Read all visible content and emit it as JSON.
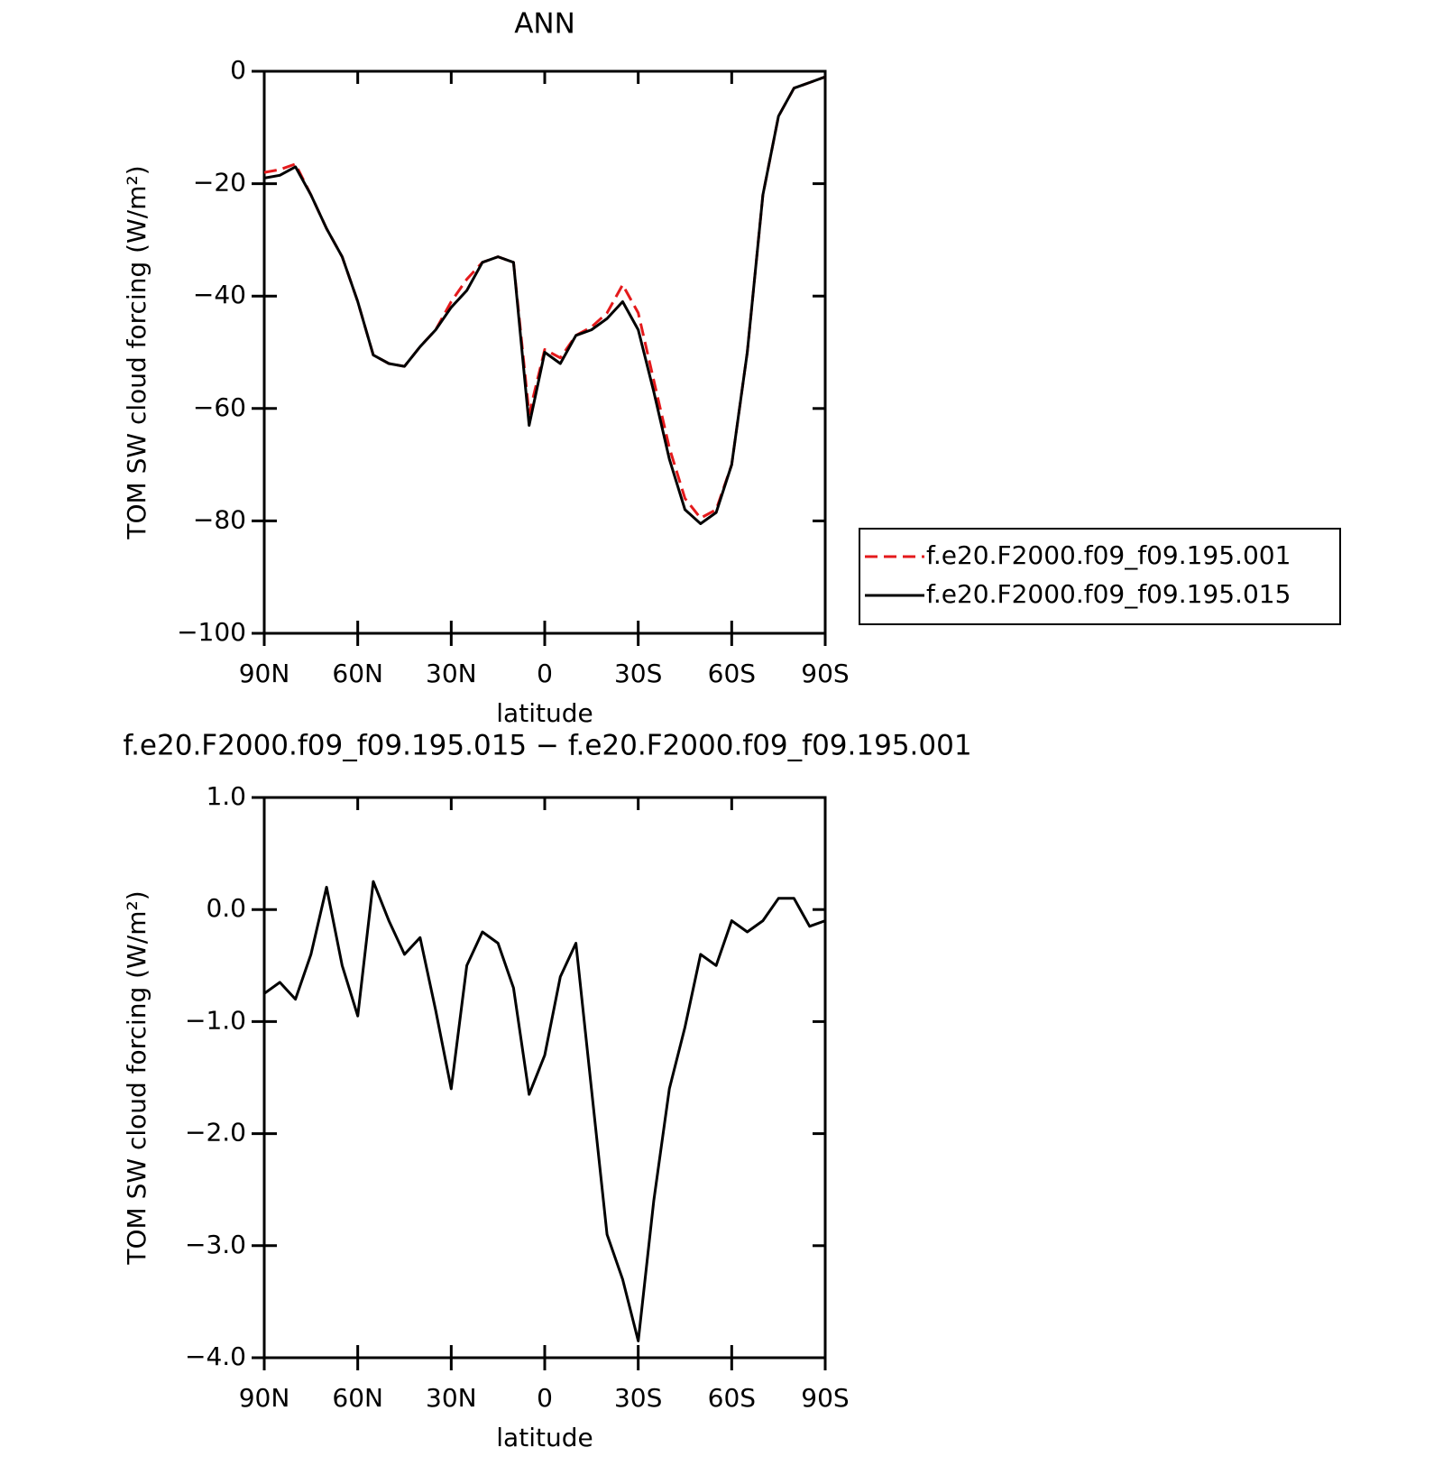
{
  "chart_data": [
    {
      "type": "line",
      "title": "ANN",
      "x_label": "latitude",
      "y_label": "TOM SW cloud forcing (W/m²)",
      "x": [
        90,
        85,
        80,
        75,
        70,
        65,
        60,
        55,
        50,
        45,
        40,
        35,
        30,
        25,
        20,
        15,
        10,
        5,
        0,
        -5,
        -10,
        -15,
        -20,
        -25,
        -30,
        -35,
        -40,
        -45,
        -50,
        -55,
        -60,
        -65,
        -70,
        -75,
        -80,
        -85,
        -90
      ],
      "xlim": [
        90,
        -90
      ],
      "xticks": [
        {
          "value": 90,
          "label": "90N"
        },
        {
          "value": 60,
          "label": "60N"
        },
        {
          "value": 30,
          "label": "30N"
        },
        0,
        {
          "value": -30,
          "label": "30S"
        },
        {
          "value": -60,
          "label": "60S"
        },
        {
          "value": -90,
          "label": "90S"
        }
      ],
      "ylim": [
        -100,
        0
      ],
      "yticks": [
        0,
        {
          "value": -20,
          "label": "−20"
        },
        {
          "value": -40,
          "label": "−40"
        },
        {
          "value": -60,
          "label": "−60"
        },
        {
          "value": -80,
          "label": "−80"
        },
        {
          "value": -100,
          "label": "−100"
        }
      ],
      "legend": "right",
      "series": [
        {
          "name": "f.e20.F2000.f09_f09.195.001",
          "color": "#e41a1c",
          "line_style": "dashed",
          "values": [
            -18,
            -17.5,
            -16.5,
            -22,
            -28,
            -33,
            -41,
            -50.5,
            -52,
            -52.5,
            -49,
            -46,
            -41,
            -37,
            -34,
            -33,
            -34,
            -61,
            -49.5,
            -51,
            -47,
            -45.5,
            -43,
            -38,
            -43,
            -55,
            -67,
            -76,
            -79.5,
            -78,
            -70,
            -50,
            -22,
            -8,
            -3,
            -2,
            -1
          ]
        },
        {
          "name": "f.e20.F2000.f09_f09.195.015",
          "color": "#000000",
          "line_style": "solid",
          "values": [
            -19,
            -18.5,
            -17,
            -22,
            -28,
            -33,
            -41,
            -50.5,
            -52,
            -52.5,
            -49,
            -46,
            -42,
            -39,
            -34,
            -33,
            -34,
            -63,
            -50,
            -52,
            -47,
            -46,
            -44,
            -41,
            -46,
            -57,
            -69,
            -78,
            -80.5,
            -78.5,
            -70,
            -50,
            -22,
            -8,
            -3,
            -2,
            -1
          ]
        }
      ]
    },
    {
      "type": "line",
      "title": "f.e20.F2000.f09_f09.195.015 − f.e20.F2000.f09_f09.195.001",
      "x_label": "latitude",
      "y_label": "TOM SW cloud forcing (W/m²)",
      "x": [
        90,
        85,
        80,
        75,
        70,
        65,
        60,
        55,
        50,
        45,
        40,
        35,
        30,
        25,
        20,
        15,
        10,
        5,
        0,
        -5,
        -10,
        -15,
        -20,
        -25,
        -30,
        -35,
        -40,
        -45,
        -50,
        -55,
        -60,
        -65,
        -70,
        -75,
        -80,
        -85,
        -90
      ],
      "xlim": [
        90,
        -90
      ],
      "xticks": [
        {
          "value": 90,
          "label": "90N"
        },
        {
          "value": 60,
          "label": "60N"
        },
        {
          "value": 30,
          "label": "30N"
        },
        0,
        {
          "value": -30,
          "label": "30S"
        },
        {
          "value": -60,
          "label": "60S"
        },
        {
          "value": -90,
          "label": "90S"
        }
      ],
      "ylim": [
        -4,
        1
      ],
      "yticks": [
        {
          "value": 1,
          "label": "1.0"
        },
        {
          "value": 0,
          "label": "0.0"
        },
        {
          "value": -1,
          "label": "−1.0"
        },
        {
          "value": -2,
          "label": "−2.0"
        },
        {
          "value": -3,
          "label": "−3.0"
        },
        {
          "value": -4,
          "label": "−4.0"
        }
      ],
      "series": [
        {
          "color": "#000000",
          "line_style": "solid",
          "values": [
            -0.75,
            -0.65,
            -0.8,
            -0.4,
            0.2,
            -0.5,
            -0.95,
            0.25,
            -0.1,
            -0.4,
            -0.25,
            -0.9,
            -1.6,
            -0.5,
            -0.2,
            -0.3,
            -0.7,
            -1.65,
            -1.3,
            -0.6,
            -0.3,
            -1.6,
            -2.9,
            -3.3,
            -3.85,
            -2.6,
            -1.6,
            -1.05,
            -0.4,
            -0.5,
            -0.1,
            -0.2,
            -0.1,
            0.1,
            0.1,
            -0.15,
            -0.1
          ]
        }
      ]
    }
  ]
}
